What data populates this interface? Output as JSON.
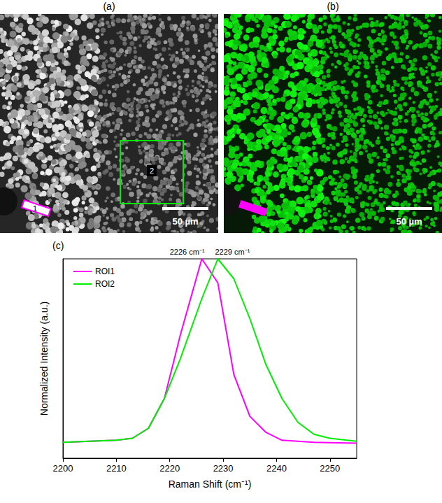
{
  "panels": [
    {
      "label": "(a)",
      "scale_bar": "50 µm",
      "roi_labels": [
        "1",
        "2"
      ]
    },
    {
      "label": "(b)",
      "scale_bar": "50 µm"
    }
  ],
  "chart_data": {
    "type": "line",
    "panel_label": "(c)",
    "x_label": "Raman Shift (cm⁻¹)",
    "y_label": "Normalized Intensity (a.u.)",
    "x": [
      2200,
      2205,
      2210,
      2213,
      2216,
      2219,
      2222,
      2226,
      2229,
      2232,
      2235,
      2238,
      2241,
      2244,
      2247,
      2250,
      2255
    ],
    "series": [
      {
        "name": "ROI1",
        "color": "#ff00ff",
        "values": [
          0.08,
          0.085,
          0.09,
          0.1,
          0.15,
          0.3,
          0.62,
          1.0,
          0.88,
          0.42,
          0.21,
          0.13,
          0.09,
          0.085,
          0.08,
          0.078,
          0.075
        ]
      },
      {
        "name": "ROI2",
        "color": "#00ee00",
        "values": [
          0.08,
          0.085,
          0.09,
          0.1,
          0.15,
          0.3,
          0.5,
          0.8,
          1.0,
          0.9,
          0.7,
          0.47,
          0.3,
          0.18,
          0.12,
          0.1,
          0.085
        ]
      }
    ],
    "annotations": [
      {
        "text": "2226 cm⁻¹",
        "x": 2226,
        "y": 1.0
      },
      {
        "text": "2229 cm⁻¹",
        "x": 2229,
        "y": 1.0
      }
    ],
    "xlim": [
      2200,
      2255
    ],
    "xticks": [
      2200,
      2210,
      2220,
      2230,
      2240,
      2250
    ],
    "ylim": [
      0,
      1
    ],
    "tick_labels": "x",
    "grid": false,
    "legend": "upper left"
  }
}
